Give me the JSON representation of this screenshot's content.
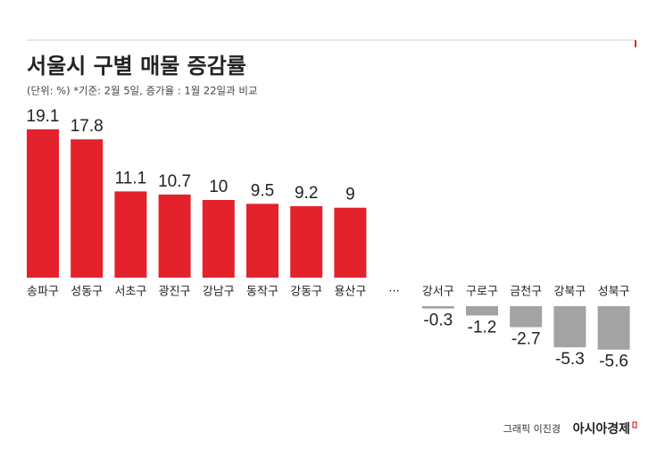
{
  "chart_data": {
    "type": "bar",
    "title": "서울시 구별 매물 증감률",
    "subtitle": "(단위: %) *기준: 2월 5일, 증가율 : 1월 22일과 비교",
    "categories": [
      "송파구",
      "성동구",
      "서초구",
      "광진구",
      "강남구",
      "동작구",
      "강동구",
      "용산구",
      "···",
      "강서구",
      "구로구",
      "금천구",
      "강북구",
      "성북구"
    ],
    "values": [
      19.1,
      17.8,
      11.1,
      10.7,
      10,
      9.5,
      9.2,
      9,
      null,
      -0.3,
      -1.2,
      -2.7,
      -5.3,
      -5.6
    ],
    "color": "#e3222b",
    "negative_color": "#a3a3a3",
    "credit": "그래픽 이진경",
    "source": "아시아경제"
  }
}
